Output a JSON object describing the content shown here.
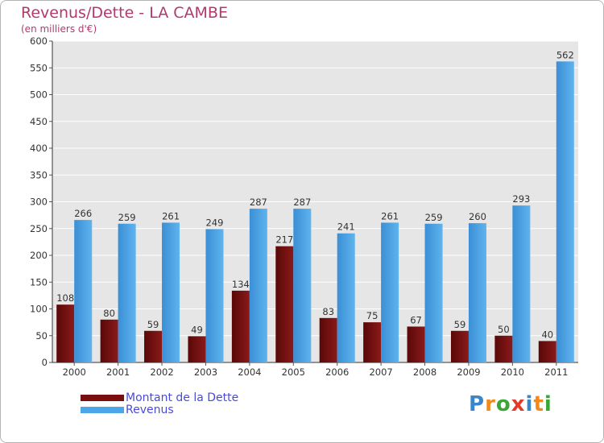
{
  "header": {
    "title": "Revenus/Dette - LA CAMBE",
    "subtitle": "(en milliers d'€)"
  },
  "legend": {
    "items": [
      {
        "label": "Montant de la Dette",
        "color": "#7a0d0d"
      },
      {
        "label": "Revenus",
        "color": "#4da6e8"
      }
    ]
  },
  "logo": {
    "text": "Proxiti",
    "letters": [
      {
        "char": "P",
        "color": "#3a86c8"
      },
      {
        "char": "r",
        "color": "#f08a1c"
      },
      {
        "char": "o",
        "color": "#3aa63a"
      },
      {
        "char": "x",
        "color": "#e43a2a"
      },
      {
        "char": "i",
        "color": "#3a86c8"
      },
      {
        "char": "t",
        "color": "#f08a1c"
      },
      {
        "char": "i",
        "color": "#3aa63a"
      }
    ]
  },
  "chart_data": {
    "type": "bar",
    "title": "Revenus/Dette - LA CAMBE",
    "subtitle": "(en milliers d'€)",
    "categories": [
      "2000",
      "2001",
      "2002",
      "2003",
      "2004",
      "2005",
      "2006",
      "2007",
      "2008",
      "2009",
      "2010",
      "2011"
    ],
    "series": [
      {
        "name": "Montant de la Dette",
        "color": "#7a0d0d",
        "values": [
          108,
          80,
          59,
          49,
          134,
          217,
          83,
          75,
          67,
          59,
          50,
          40
        ]
      },
      {
        "name": "Revenus",
        "color": "#4da6e8",
        "values": [
          266,
          259,
          261,
          249,
          287,
          287,
          241,
          261,
          259,
          260,
          293,
          562
        ]
      }
    ],
    "ylim": [
      0,
      600
    ],
    "yticks": [
      0,
      50,
      100,
      150,
      200,
      250,
      300,
      350,
      400,
      450,
      500,
      550,
      600
    ],
    "grid": true,
    "legend_position": "bottom-left"
  }
}
